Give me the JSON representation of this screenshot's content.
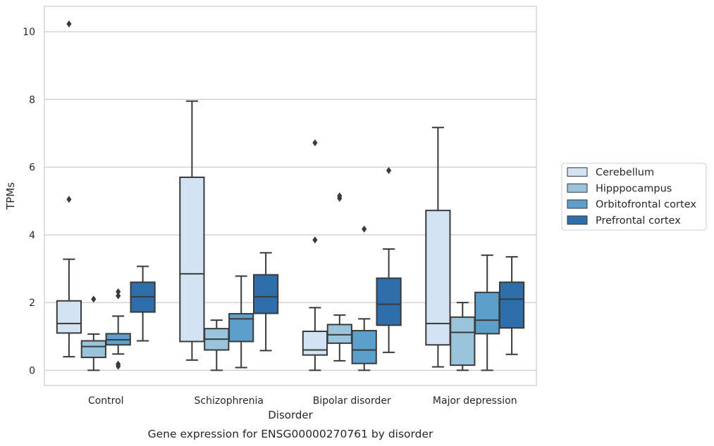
{
  "chart_data": {
    "type": "box",
    "caption": "Gene expression for ENSG00000270761 by disorder",
    "xlabel": "Disorder",
    "ylabel": "TPMs",
    "ylim": [
      -0.45,
      10.75
    ],
    "yticks": [
      0,
      2,
      4,
      6,
      8,
      10
    ],
    "grid": "horizontal",
    "legend_position": "right",
    "categories": [
      "Control",
      "Schizophrenia",
      "Bipolar disorder",
      "Major depression"
    ],
    "series": [
      {
        "name": "Cerebellum",
        "color": "#d3e3f3",
        "boxes": [
          {
            "whislo": 0.4,
            "q1": 1.1,
            "med": 1.38,
            "q3": 2.05,
            "whishi": 3.28,
            "fliers": [
              5.05,
              10.23
            ]
          },
          {
            "whislo": 0.3,
            "q1": 0.85,
            "med": 2.85,
            "q3": 5.7,
            "whishi": 7.95,
            "fliers": []
          },
          {
            "whislo": 0.0,
            "q1": 0.45,
            "med": 0.6,
            "q3": 1.15,
            "whishi": 1.85,
            "fliers": [
              3.85,
              6.72
            ]
          },
          {
            "whislo": 0.1,
            "q1": 0.75,
            "med": 1.38,
            "q3": 4.72,
            "whishi": 7.17,
            "fliers": []
          }
        ]
      },
      {
        "name": "Hipppocampus",
        "color": "#9ac3dc",
        "boxes": [
          {
            "whislo": 0.0,
            "q1": 0.38,
            "med": 0.7,
            "q3": 0.87,
            "whishi": 1.07,
            "fliers": [
              2.1
            ]
          },
          {
            "whislo": 0.0,
            "q1": 0.6,
            "med": 0.92,
            "q3": 1.23,
            "whishi": 1.48,
            "fliers": []
          },
          {
            "whislo": 0.28,
            "q1": 0.8,
            "med": 1.05,
            "q3": 1.35,
            "whishi": 1.63,
            "fliers": [
              5.08,
              5.15
            ]
          },
          {
            "whislo": 0.0,
            "q1": 0.15,
            "med": 1.12,
            "q3": 1.57,
            "whishi": 2.0,
            "fliers": []
          }
        ]
      },
      {
        "name": "Orbitofrontal cortex",
        "color": "#5b9fca",
        "boxes": [
          {
            "whislo": 0.48,
            "q1": 0.75,
            "med": 0.9,
            "q3": 1.08,
            "whishi": 1.6,
            "fliers": [
              0.12,
              0.18,
              2.2,
              2.32
            ]
          },
          {
            "whislo": 0.08,
            "q1": 0.85,
            "med": 1.52,
            "q3": 1.67,
            "whishi": 2.78,
            "fliers": []
          },
          {
            "whislo": 0.0,
            "q1": 0.2,
            "med": 0.6,
            "q3": 1.17,
            "whishi": 1.52,
            "fliers": [
              4.17
            ]
          },
          {
            "whislo": 0.0,
            "q1": 1.08,
            "med": 1.48,
            "q3": 2.3,
            "whishi": 3.4,
            "fliers": []
          }
        ]
      },
      {
        "name": "Prefrontal cortex",
        "color": "#2e6eab",
        "boxes": [
          {
            "whislo": 0.87,
            "q1": 1.72,
            "med": 2.17,
            "q3": 2.6,
            "whishi": 3.07,
            "fliers": []
          },
          {
            "whislo": 0.58,
            "q1": 1.68,
            "med": 2.17,
            "q3": 2.82,
            "whishi": 3.47,
            "fliers": []
          },
          {
            "whislo": 0.53,
            "q1": 1.33,
            "med": 1.95,
            "q3": 2.72,
            "whishi": 3.58,
            "fliers": [
              5.9
            ]
          },
          {
            "whislo": 0.47,
            "q1": 1.25,
            "med": 2.1,
            "q3": 2.6,
            "whishi": 3.35,
            "fliers": []
          }
        ]
      }
    ]
  }
}
